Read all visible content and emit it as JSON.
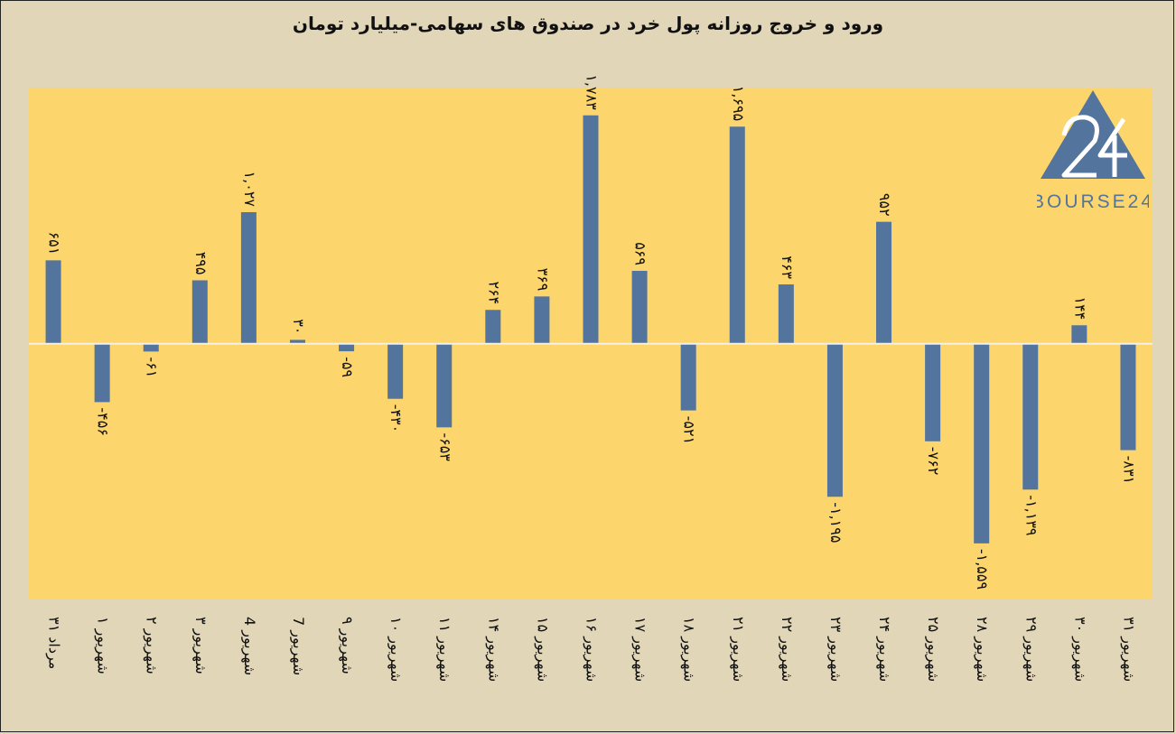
{
  "title": "ورود و خروج روزانه پول خرد در صندوق های سهامی-میلیارد تومان",
  "logo": {
    "name": "triangle-24-logo",
    "text": "BOURSE24"
  },
  "colors": {
    "background": "#e2d6b9",
    "plot": "#fcd56c",
    "bar": "#53749c",
    "zero_line": "#f3f0e6"
  },
  "chart_data": {
    "type": "bar",
    "title": "ورود و خروج روزانه پول خرد در صندوق های سهامی-میلیارد تومان",
    "xlabel": "",
    "ylabel": "",
    "ylim": [
      -1990,
      2000
    ],
    "grid": false,
    "categories": [
      "۳۱ مرداد",
      "۱ شهریور",
      "۲ شهریور",
      "۳ شهریور",
      "4 شهریور",
      "7 شهریور",
      "۹ شهریور",
      "۱۰ شهریور",
      "۱۱ شهریور",
      "۱۴ شهریور",
      "۱۵ شهریور",
      "۱۶ شهریور",
      "۱۷ شهریور",
      "۱۸ شهریور",
      "۲۱ شهریور",
      "۲۲ شهریور",
      "۲۳ شهریور",
      "۲۴ شهریور",
      "۲۵ شهریور",
      "۲۸ شهریور",
      "۲۹ شهریور",
      "۳۰ شهریور",
      "۳۱ شهریور"
    ],
    "values": [
      651,
      -456,
      -61,
      495,
      1027,
      30,
      -59,
      -430,
      -653,
      264,
      369,
      1783,
      569,
      -521,
      1695,
      463,
      -1195,
      952,
      -762,
      -1559,
      -1139,
      144,
      -831
    ],
    "value_labels": [
      "۶۵۱",
      "-۴۵۶",
      "-۶۱",
      "۴۹۵",
      "۱,۰۲۷",
      "۳۰",
      "-۵۹",
      "-۴۳۰",
      "-۶۵۳",
      "۲۶۴",
      "۳۶۹",
      "۱,۷۸۳",
      "۵۶۹",
      "-۵۲۱",
      "۱,۶۹۵",
      "۴۶۳",
      "-۱,۱۹۵",
      "۹۵۲",
      "-۷۶۲",
      "-۱,۵۵۹",
      "-۱,۱۳۹",
      "۱۴۴",
      "-۸۳۱"
    ]
  }
}
